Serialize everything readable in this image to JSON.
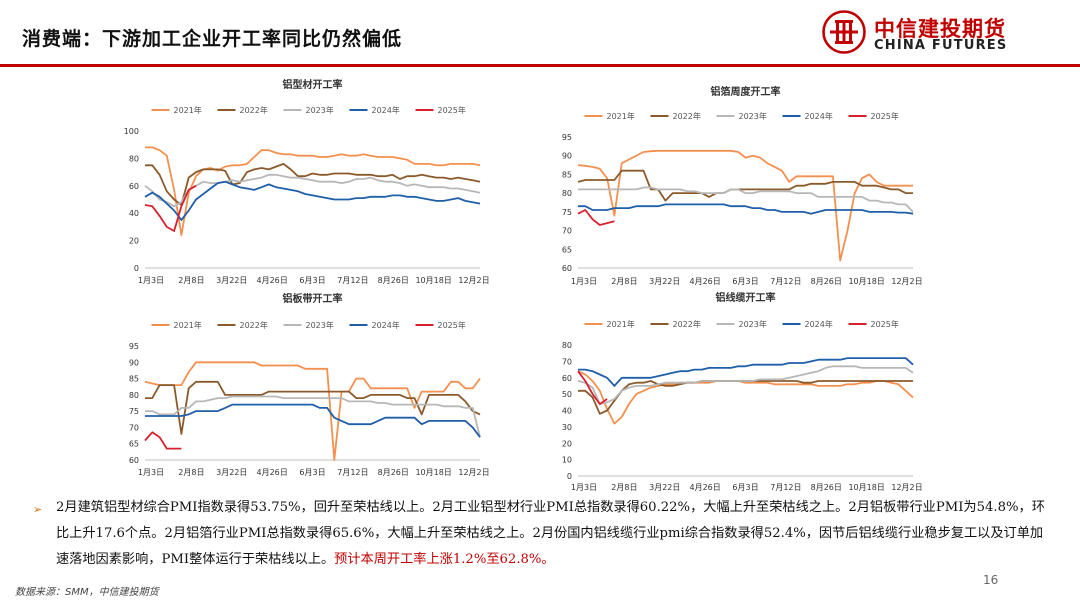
{
  "header": {
    "title": "消费端：下游加工企业开工率同比仍然偏低"
  },
  "logo": {
    "name_cn": "中信建投期货",
    "name_en": "CHINA FUTURES",
    "color": "#c00000"
  },
  "series_colors": {
    "2021年": "#f4904f",
    "2022年": "#8b5a2b",
    "2023年": "#b7b7b7",
    "2024年": "#1f5ea8",
    "2025年": "#d7202e"
  },
  "chart_data": [
    {
      "type": "line",
      "title": "铝型材开工率",
      "x_ticks": [
        "1月3日",
        "2月8日",
        "3月22日",
        "4月26日",
        "6月3日",
        "7月12日",
        "8月26日",
        "10月18日",
        "12月2日"
      ],
      "ylim": [
        0,
        100
      ],
      "yticks": [
        0,
        20,
        40,
        60,
        80,
        100
      ],
      "legend": "top",
      "series": [
        {
          "name": "2021年",
          "values": [
            88,
            88,
            86,
            82,
            57,
            24,
            55,
            67,
            72,
            73,
            71,
            74,
            75,
            75,
            76,
            81,
            86,
            86,
            84,
            83,
            83,
            82,
            82,
            82,
            81,
            81,
            82,
            83,
            82,
            82,
            83,
            82,
            81,
            81,
            81,
            80,
            79,
            76,
            76,
            76,
            75,
            75,
            76,
            76,
            76,
            76,
            75
          ]
        },
        {
          "name": "2022年",
          "values": [
            75,
            75,
            68,
            56,
            50,
            46,
            66,
            70,
            72,
            72,
            72,
            71,
            61,
            62,
            70,
            72,
            73,
            72,
            74,
            76,
            72,
            67,
            67,
            69,
            68,
            68,
            69,
            69,
            69,
            68,
            68,
            68,
            67,
            67,
            68,
            65,
            67,
            67,
            68,
            67,
            66,
            66,
            65,
            66,
            65,
            64,
            63
          ]
        },
        {
          "name": "2023年",
          "values": [
            60,
            56,
            50,
            48,
            45,
            48,
            57,
            60,
            63,
            62,
            62,
            63,
            64,
            63,
            64,
            65,
            66,
            68,
            68,
            67,
            66,
            66,
            65,
            64,
            63,
            63,
            63,
            62,
            63,
            65,
            65,
            66,
            64,
            63,
            63,
            62,
            60,
            61,
            60,
            59,
            59,
            59,
            58,
            58,
            57,
            56,
            55
          ]
        },
        {
          "name": "2024年",
          "values": [
            52,
            55,
            52,
            47,
            42,
            35,
            42,
            50,
            54,
            58,
            62,
            63,
            61,
            59,
            58,
            57,
            59,
            61,
            59,
            58,
            57,
            56,
            54,
            53,
            52,
            51,
            50,
            50,
            50,
            51,
            51,
            52,
            52,
            52,
            53,
            53,
            52,
            52,
            51,
            50,
            49,
            49,
            50,
            51,
            49,
            48,
            47
          ]
        },
        {
          "name": "2025年",
          "values": [
            46,
            45,
            38,
            30,
            27,
            45,
            57,
            60
          ]
        }
      ]
    },
    {
      "type": "line",
      "title": "铝箔周度开工率",
      "x_ticks": [
        "1月3日",
        "2月8日",
        "3月22日",
        "4月26日",
        "6月3日",
        "7月12日",
        "8月26日",
        "10月18日",
        "12月2日"
      ],
      "ylim": [
        60,
        95
      ],
      "yticks": [
        60,
        65,
        70,
        75,
        80,
        85,
        90,
        95
      ],
      "legend": "top",
      "series": [
        {
          "name": "2021年",
          "values": [
            87.5,
            87.3,
            87,
            86.5,
            84,
            74,
            88,
            89,
            90,
            91,
            91.2,
            91.3,
            91.3,
            91.3,
            91.3,
            91.3,
            91.3,
            91.3,
            91.3,
            91.3,
            91.3,
            91.3,
            91,
            89.5,
            90,
            89.5,
            88,
            87,
            86,
            83,
            84.5,
            84.5,
            84.5,
            84.5,
            84.5,
            84.5,
            62,
            70,
            80,
            84,
            85,
            83,
            82,
            82,
            82,
            82,
            82
          ]
        },
        {
          "name": "2022年",
          "values": [
            83,
            83.5,
            83.5,
            83.5,
            83.5,
            83.5,
            86,
            86,
            86,
            86,
            81,
            81,
            78,
            80,
            80,
            80,
            80,
            80,
            79,
            80,
            80,
            81,
            81,
            81,
            81,
            81,
            81,
            81,
            81,
            81,
            82,
            82,
            82.5,
            82.5,
            82.5,
            83,
            83,
            83,
            83,
            82,
            82,
            82,
            81.5,
            81,
            81,
            80,
            80
          ]
        },
        {
          "name": "2023年",
          "values": [
            81,
            81,
            81,
            81,
            81,
            81,
            81,
            81,
            81,
            81.5,
            81.5,
            81,
            81,
            81,
            81,
            80.5,
            80.5,
            80,
            80,
            80,
            80,
            81,
            81,
            80,
            80,
            80.5,
            80.5,
            80.5,
            80.5,
            80.5,
            80,
            80,
            80,
            79,
            79,
            79,
            79,
            79,
            79,
            79,
            78,
            78,
            77.5,
            77.5,
            77,
            77,
            75
          ]
        },
        {
          "name": "2024年",
          "values": [
            76.5,
            76.5,
            75.5,
            75.5,
            75.5,
            76,
            76,
            76,
            76.5,
            76.5,
            76.5,
            76.5,
            77,
            77,
            77,
            77,
            77,
            77,
            77,
            77,
            77,
            76.5,
            76.5,
            76.5,
            76,
            76,
            75.5,
            75.5,
            75,
            75,
            75,
            75,
            74.5,
            75,
            75.5,
            75.5,
            75.5,
            75.5,
            75.5,
            75.5,
            75,
            75,
            75,
            75,
            74.8,
            74.8,
            74.5
          ]
        },
        {
          "name": "2025年",
          "values": [
            74.5,
            75.5,
            73,
            71.5,
            72,
            72.5
          ]
        }
      ]
    },
    {
      "type": "line",
      "title": "铝板带开工率",
      "x_ticks": [
        "1月3日",
        "2月8日",
        "3月22日",
        "4月26日",
        "6月3日",
        "7月12日",
        "8月26日",
        "10月18日",
        "12月2日"
      ],
      "ylim": [
        60,
        95
      ],
      "yticks": [
        60,
        65,
        70,
        75,
        80,
        85,
        90,
        95
      ],
      "legend": "top",
      "series": [
        {
          "name": "2021年",
          "values": [
            84,
            83.5,
            83,
            83,
            83,
            83,
            87,
            90,
            90,
            90,
            90,
            90,
            90,
            90,
            90,
            90,
            89,
            89,
            89,
            89,
            89,
            89,
            88,
            88,
            88,
            88,
            60,
            81,
            81,
            85,
            85,
            82,
            82,
            82,
            82,
            82,
            82,
            76,
            81,
            81,
            81,
            81,
            84,
            84,
            82,
            82,
            85
          ]
        },
        {
          "name": "2022年",
          "values": [
            79,
            79,
            83,
            83,
            83,
            68,
            82,
            84,
            84,
            84,
            84,
            80,
            80,
            80,
            80,
            80,
            80,
            81,
            81,
            81,
            81,
            81,
            81,
            81,
            81,
            81,
            81,
            81,
            81,
            79,
            79,
            80,
            80,
            80,
            80,
            80,
            79,
            79,
            74,
            80,
            80,
            80,
            80,
            80,
            78,
            75,
            74
          ]
        },
        {
          "name": "2023年",
          "values": [
            75,
            75,
            74,
            74,
            74,
            76,
            76,
            78,
            78,
            78.5,
            79,
            79,
            79.5,
            79.5,
            79.5,
            79.5,
            79.5,
            79.5,
            79.5,
            79,
            79,
            79,
            79,
            79,
            79,
            79,
            79,
            79,
            78,
            78,
            78,
            78,
            77.5,
            77.5,
            77,
            77,
            77,
            77,
            77,
            77,
            77,
            76.5,
            76.5,
            76.5,
            76,
            76,
            67
          ]
        },
        {
          "name": "2024年",
          "values": [
            73.5,
            73.5,
            73.5,
            73.5,
            73.5,
            73.5,
            74,
            75,
            75,
            75,
            75,
            76,
            77,
            77,
            77,
            77,
            77,
            77,
            77,
            77,
            77,
            77,
            77,
            77,
            76,
            76,
            73,
            72,
            71,
            71,
            71,
            71,
            72,
            73,
            73,
            73,
            73,
            73,
            71,
            72,
            72,
            72,
            72,
            72,
            72,
            70,
            67
          ]
        },
        {
          "name": "2025年",
          "values": [
            66,
            68.5,
            67,
            63.5,
            63.5,
            63.5
          ]
        }
      ]
    },
    {
      "type": "line",
      "title": "铝线缆开工率",
      "x_ticks": [
        "1月3日",
        "2月8日",
        "3月22日",
        "4月26日",
        "6月3日",
        "7月12日",
        "8月26日",
        "10月18日",
        "12月2日"
      ],
      "ylim": [
        0,
        80
      ],
      "yticks": [
        0,
        10,
        20,
        30,
        40,
        50,
        60,
        70,
        80
      ],
      "legend": "top",
      "series": [
        {
          "name": "2021年",
          "values": [
            64,
            62,
            58,
            52,
            41,
            32,
            36,
            44,
            50,
            52,
            54,
            55,
            56,
            56,
            57,
            57,
            57,
            57,
            57,
            58,
            58,
            58,
            58,
            57,
            57,
            57,
            57,
            56,
            56,
            56,
            56,
            56,
            56,
            55,
            55,
            55,
            55,
            56,
            56,
            57,
            57,
            58,
            58,
            57,
            56,
            52,
            48
          ]
        },
        {
          "name": "2022年",
          "values": [
            52,
            52,
            48,
            38,
            40,
            46,
            52,
            56,
            57,
            57,
            58,
            56,
            55,
            55,
            56,
            57,
            57,
            58,
            58,
            58,
            58,
            58,
            58,
            58,
            58,
            58,
            58,
            58,
            58,
            58,
            58,
            57,
            57,
            58,
            58,
            58,
            58,
            58,
            58,
            58,
            58,
            58,
            58,
            58,
            58,
            58,
            58
          ]
        },
        {
          "name": "2023年",
          "values": [
            58,
            57,
            54,
            44,
            45,
            47,
            52,
            54,
            55,
            55,
            55,
            56,
            57,
            57,
            57,
            57,
            57,
            58,
            58,
            58,
            58,
            58,
            58,
            58,
            58,
            59,
            59,
            59,
            59,
            60,
            61,
            62,
            63,
            64,
            66,
            67,
            67,
            67,
            67,
            66,
            66,
            66,
            66,
            66,
            66,
            66,
            63
          ]
        },
        {
          "name": "2024年",
          "values": [
            65,
            65,
            64,
            62,
            60,
            55,
            60,
            60,
            60,
            60,
            60,
            61,
            62,
            63,
            64,
            64,
            65,
            65,
            66,
            66,
            66,
            66,
            67,
            67,
            68,
            68,
            68,
            68,
            68,
            69,
            69,
            69,
            70,
            71,
            71,
            71,
            71,
            72,
            72,
            72,
            72,
            72,
            72,
            72,
            72,
            72,
            68
          ]
        },
        {
          "name": "2025年",
          "values": [
            64,
            58,
            50,
            44,
            47
          ]
        }
      ]
    }
  ],
  "body": {
    "bullet": "➢",
    "text": "2月建筑铝型材综合PMI指数录得53.75%，回升至荣枯线以上。2月工业铝型材行业PMI总指数录得60.22%，大幅上升至荣枯线之上。2月铝板带行业PMI为54.8%，环比上升17.6个点。2月铝箔行业PMI总指数录得65.6%，大幅上升至荣枯线之上。2月份国内铝线缆行业pmi综合指数录得52.4%，因节后铝线缆行业稳步复工以及订单加速落地因素影响，PMI整体运行于荣枯线以上。",
    "highlight": "预计本周开工率上涨1.2%至62.8%。"
  },
  "footer": {
    "source": "数据来源：SMM，中信建投期货",
    "page_number": "16"
  }
}
